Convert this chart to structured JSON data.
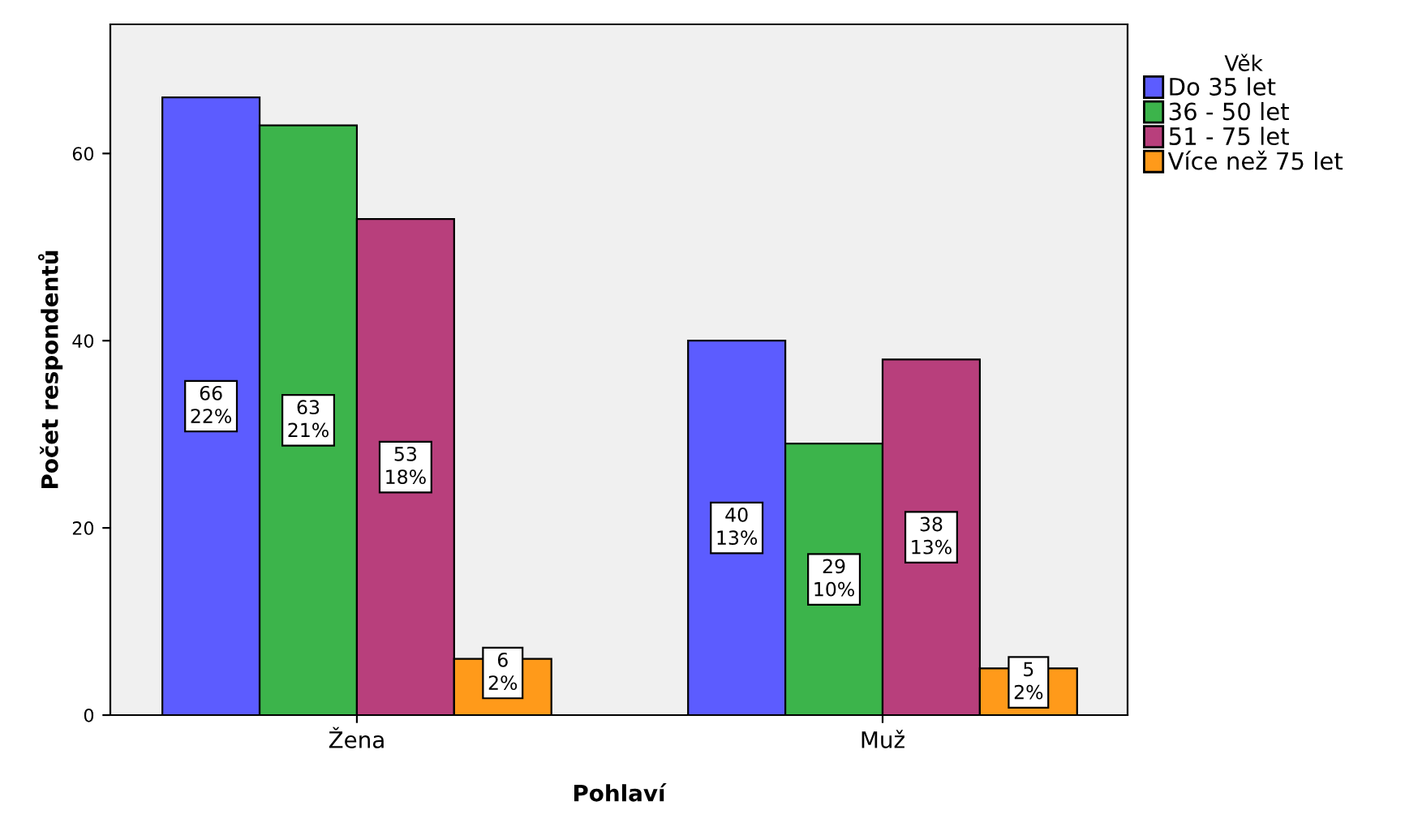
{
  "chart_data": {
    "type": "bar",
    "xlabel": "Pohlaví",
    "ylabel": "Počet respondentů",
    "legend_title": "Věk",
    "categories": [
      "Žena",
      "Muž"
    ],
    "series": [
      {
        "name": "Do 35 let",
        "color": "#5c5cff",
        "values": [
          66,
          40
        ],
        "value_labels": [
          "66\n22%",
          "40\n13%"
        ]
      },
      {
        "name": "36 - 50 let",
        "color": "#3cb44b",
        "values": [
          63,
          29
        ],
        "value_labels": [
          "63\n21%",
          "29\n10%"
        ]
      },
      {
        "name": "51 - 75 let",
        "color": "#b83f7c",
        "values": [
          53,
          38
        ],
        "value_labels": [
          "53\n18%",
          "38\n13%"
        ]
      },
      {
        "name": "Více než 75 let",
        "color": "#ff9a1a",
        "values": [
          6,
          5
        ],
        "value_labels": [
          "6\n2%",
          "5\n2%"
        ]
      }
    ],
    "ylim": [
      0,
      73.8
    ],
    "yticks": [
      0,
      20,
      40,
      60
    ],
    "grid": false,
    "legend": "top right"
  }
}
